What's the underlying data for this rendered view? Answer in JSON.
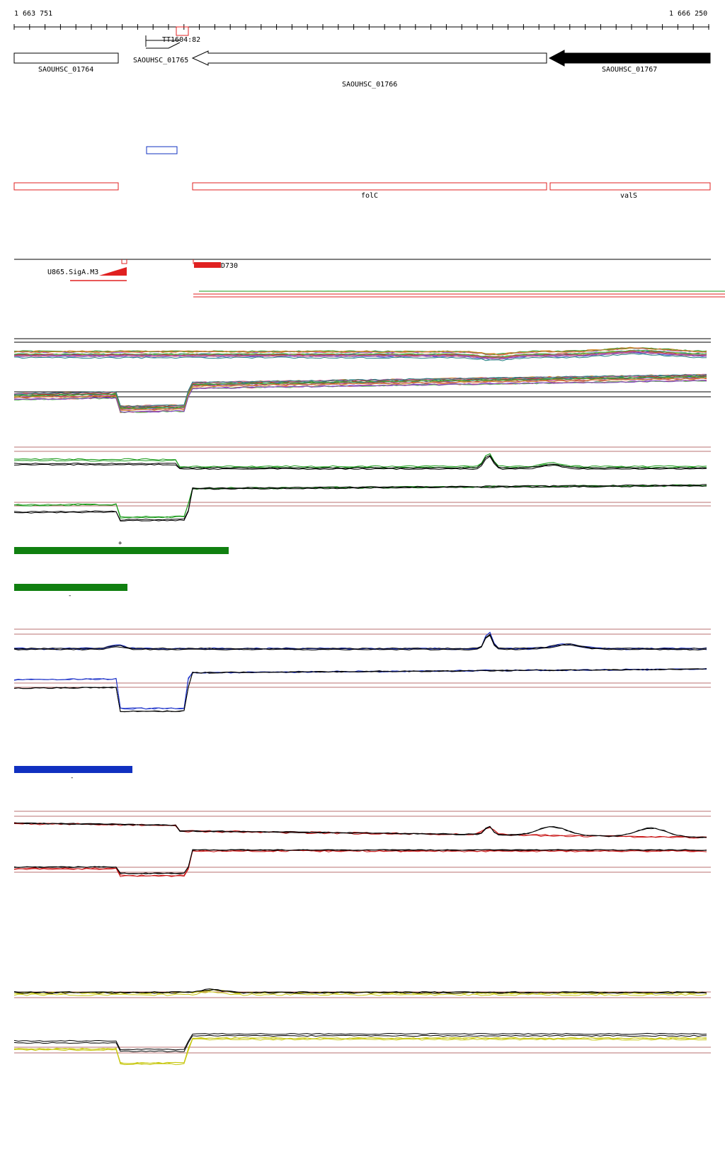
{
  "range": {
    "start_label": "1 663 751",
    "end_label": "1 666 250",
    "start": 1663751,
    "end": 1666250
  },
  "genes": [
    {
      "id": "SAOUHSC_01764",
      "strand": "+",
      "filled": false
    },
    {
      "id": "SAOUHSC_01765",
      "strand": "-",
      "filled": false
    },
    {
      "id": "SAOUHSC_01766",
      "strand": "-",
      "filled": false
    },
    {
      "id": "SAOUHSC_01767",
      "strand": "-",
      "filled": true
    }
  ],
  "terminator_label": "TT1604:82",
  "annotation_names": {
    "gene_folC": "folC",
    "gene_valS": "valS"
  },
  "promoter_labels": {
    "left": "U865.SigA.M3",
    "right": "D730"
  },
  "strand_marks": {
    "plus": "+",
    "minus_green": "-",
    "minus_blue": "-"
  },
  "colors": {
    "gene_annotation": "#e02020",
    "blue_feature": "#1030c0",
    "green_segment": "#108010",
    "blue_segment": "#1030c0",
    "track_green": "#1a9a1a",
    "track_blue": "#1a30c8",
    "track_red": "#c81414",
    "track_yellow": "#c8c814",
    "reference_line": "#a04040"
  }
}
